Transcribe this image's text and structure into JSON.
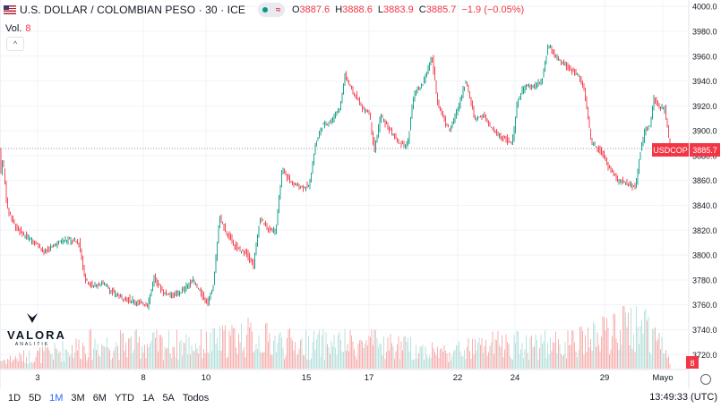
{
  "header": {
    "title": "U.S. DOLLAR / COLOMBIAN PESO · 30 · ICE",
    "ohlc": {
      "o_label": "O",
      "o": "3887.6",
      "h_label": "H",
      "h": "3888.6",
      "l_label": "L",
      "l": "3883.9",
      "c_label": "C",
      "c": "3885.7",
      "change": "−1.9 (−0.05%)"
    },
    "flag_icon": "us-flag-icon",
    "wave_symbol": "≈"
  },
  "volume_legend": {
    "label": "Vol.",
    "value": "8"
  },
  "collapse_symbol": "^",
  "logo": {
    "word": "VALORA",
    "sub": "ANALITIK"
  },
  "price_badge": {
    "symbol": "USDCOP",
    "value": "3885.7"
  },
  "volume_badge": "8",
  "timeframes": [
    "1D",
    "5D",
    "1M",
    "3M",
    "6M",
    "YTD",
    "1A",
    "5A",
    "Todos"
  ],
  "active_timeframe": "1M",
  "clock": "13:49:33 (UTC)",
  "colors": {
    "up": "#089981",
    "down": "#f23645",
    "up_vol": "#b2dfdb",
    "down_vol": "#f7a9a7",
    "grid": "#f0f3fa",
    "accent": "#2962ff"
  },
  "chart_data": {
    "type": "candlestick",
    "y_ticks": [
      4000,
      3980,
      3960,
      3940,
      3920,
      3900,
      3880,
      3860,
      3840,
      3820,
      3800,
      3780,
      3760,
      3740,
      3720
    ],
    "y_tick_labels": [
      "4000.0",
      "3980.0",
      "3960.0",
      "3940.0",
      "3920.0",
      "3900.0",
      "3880.0",
      "3860.0",
      "3840.0",
      "3820.0",
      "3800.0",
      "3780.0",
      "3760.0",
      "3740.0",
      "3720.0"
    ],
    "ylim": [
      3713,
      4003
    ],
    "x_labels": [
      "3",
      "8",
      "10",
      "15",
      "17",
      "22",
      "24",
      "29",
      "Mayo"
    ],
    "last_price": 3885.7,
    "price_path": [
      [
        0,
        3860
      ],
      [
        3,
        3878
      ],
      [
        8,
        3838
      ],
      [
        18,
        3822
      ],
      [
        28,
        3815
      ],
      [
        40,
        3810
      ],
      [
        50,
        3802
      ],
      [
        60,
        3808
      ],
      [
        70,
        3812
      ],
      [
        80,
        3812
      ],
      [
        88,
        3810
      ],
      [
        95,
        3780
      ],
      [
        105,
        3775
      ],
      [
        115,
        3778
      ],
      [
        125,
        3770
      ],
      [
        135,
        3766
      ],
      [
        145,
        3764
      ],
      [
        155,
        3762
      ],
      [
        165,
        3760
      ],
      [
        172,
        3782
      ],
      [
        182,
        3770
      ],
      [
        195,
        3768
      ],
      [
        205,
        3772
      ],
      [
        215,
        3780
      ],
      [
        225,
        3768
      ],
      [
        232,
        3762
      ],
      [
        238,
        3775
      ],
      [
        245,
        3830
      ],
      [
        255,
        3815
      ],
      [
        265,
        3805
      ],
      [
        275,
        3802
      ],
      [
        283,
        3792
      ],
      [
        290,
        3830
      ],
      [
        300,
        3820
      ],
      [
        308,
        3820
      ],
      [
        315,
        3870
      ],
      [
        325,
        3858
      ],
      [
        335,
        3855
      ],
      [
        345,
        3855
      ],
      [
        352,
        3888
      ],
      [
        360,
        3905
      ],
      [
        370,
        3908
      ],
      [
        380,
        3920
      ],
      [
        385,
        3945
      ],
      [
        395,
        3930
      ],
      [
        405,
        3918
      ],
      [
        412,
        3915
      ],
      [
        418,
        3885
      ],
      [
        425,
        3912
      ],
      [
        435,
        3900
      ],
      [
        445,
        3890
      ],
      [
        455,
        3888
      ],
      [
        462,
        3930
      ],
      [
        470,
        3935
      ],
      [
        478,
        3950
      ],
      [
        482,
        3960
      ],
      [
        488,
        3925
      ],
      [
        495,
        3910
      ],
      [
        502,
        3900
      ],
      [
        510,
        3915
      ],
      [
        520,
        3940
      ],
      [
        530,
        3910
      ],
      [
        540,
        3912
      ],
      [
        550,
        3900
      ],
      [
        560,
        3895
      ],
      [
        572,
        3890
      ],
      [
        578,
        3925
      ],
      [
        585,
        3935
      ],
      [
        595,
        3935
      ],
      [
        605,
        3940
      ],
      [
        612,
        3968
      ],
      [
        622,
        3958
      ],
      [
        632,
        3952
      ],
      [
        645,
        3945
      ],
      [
        652,
        3935
      ],
      [
        660,
        3890
      ],
      [
        670,
        3885
      ],
      [
        680,
        3870
      ],
      [
        690,
        3860
      ],
      [
        700,
        3858
      ],
      [
        710,
        3855
      ],
      [
        714,
        3880
      ],
      [
        720,
        3900
      ],
      [
        726,
        3905
      ],
      [
        730,
        3926
      ],
      [
        736,
        3918
      ],
      [
        742,
        3918
      ],
      [
        748,
        3886
      ]
    ],
    "volume_path": [
      [
        0,
        1
      ],
      [
        60,
        2
      ],
      [
        100,
        3
      ],
      [
        160,
        3
      ],
      [
        230,
        3
      ],
      [
        270,
        4
      ],
      [
        330,
        3
      ],
      [
        420,
        3
      ],
      [
        500,
        2
      ],
      [
        560,
        3
      ],
      [
        640,
        3
      ],
      [
        700,
        5
      ],
      [
        720,
        6
      ],
      [
        748,
        1
      ]
    ]
  }
}
